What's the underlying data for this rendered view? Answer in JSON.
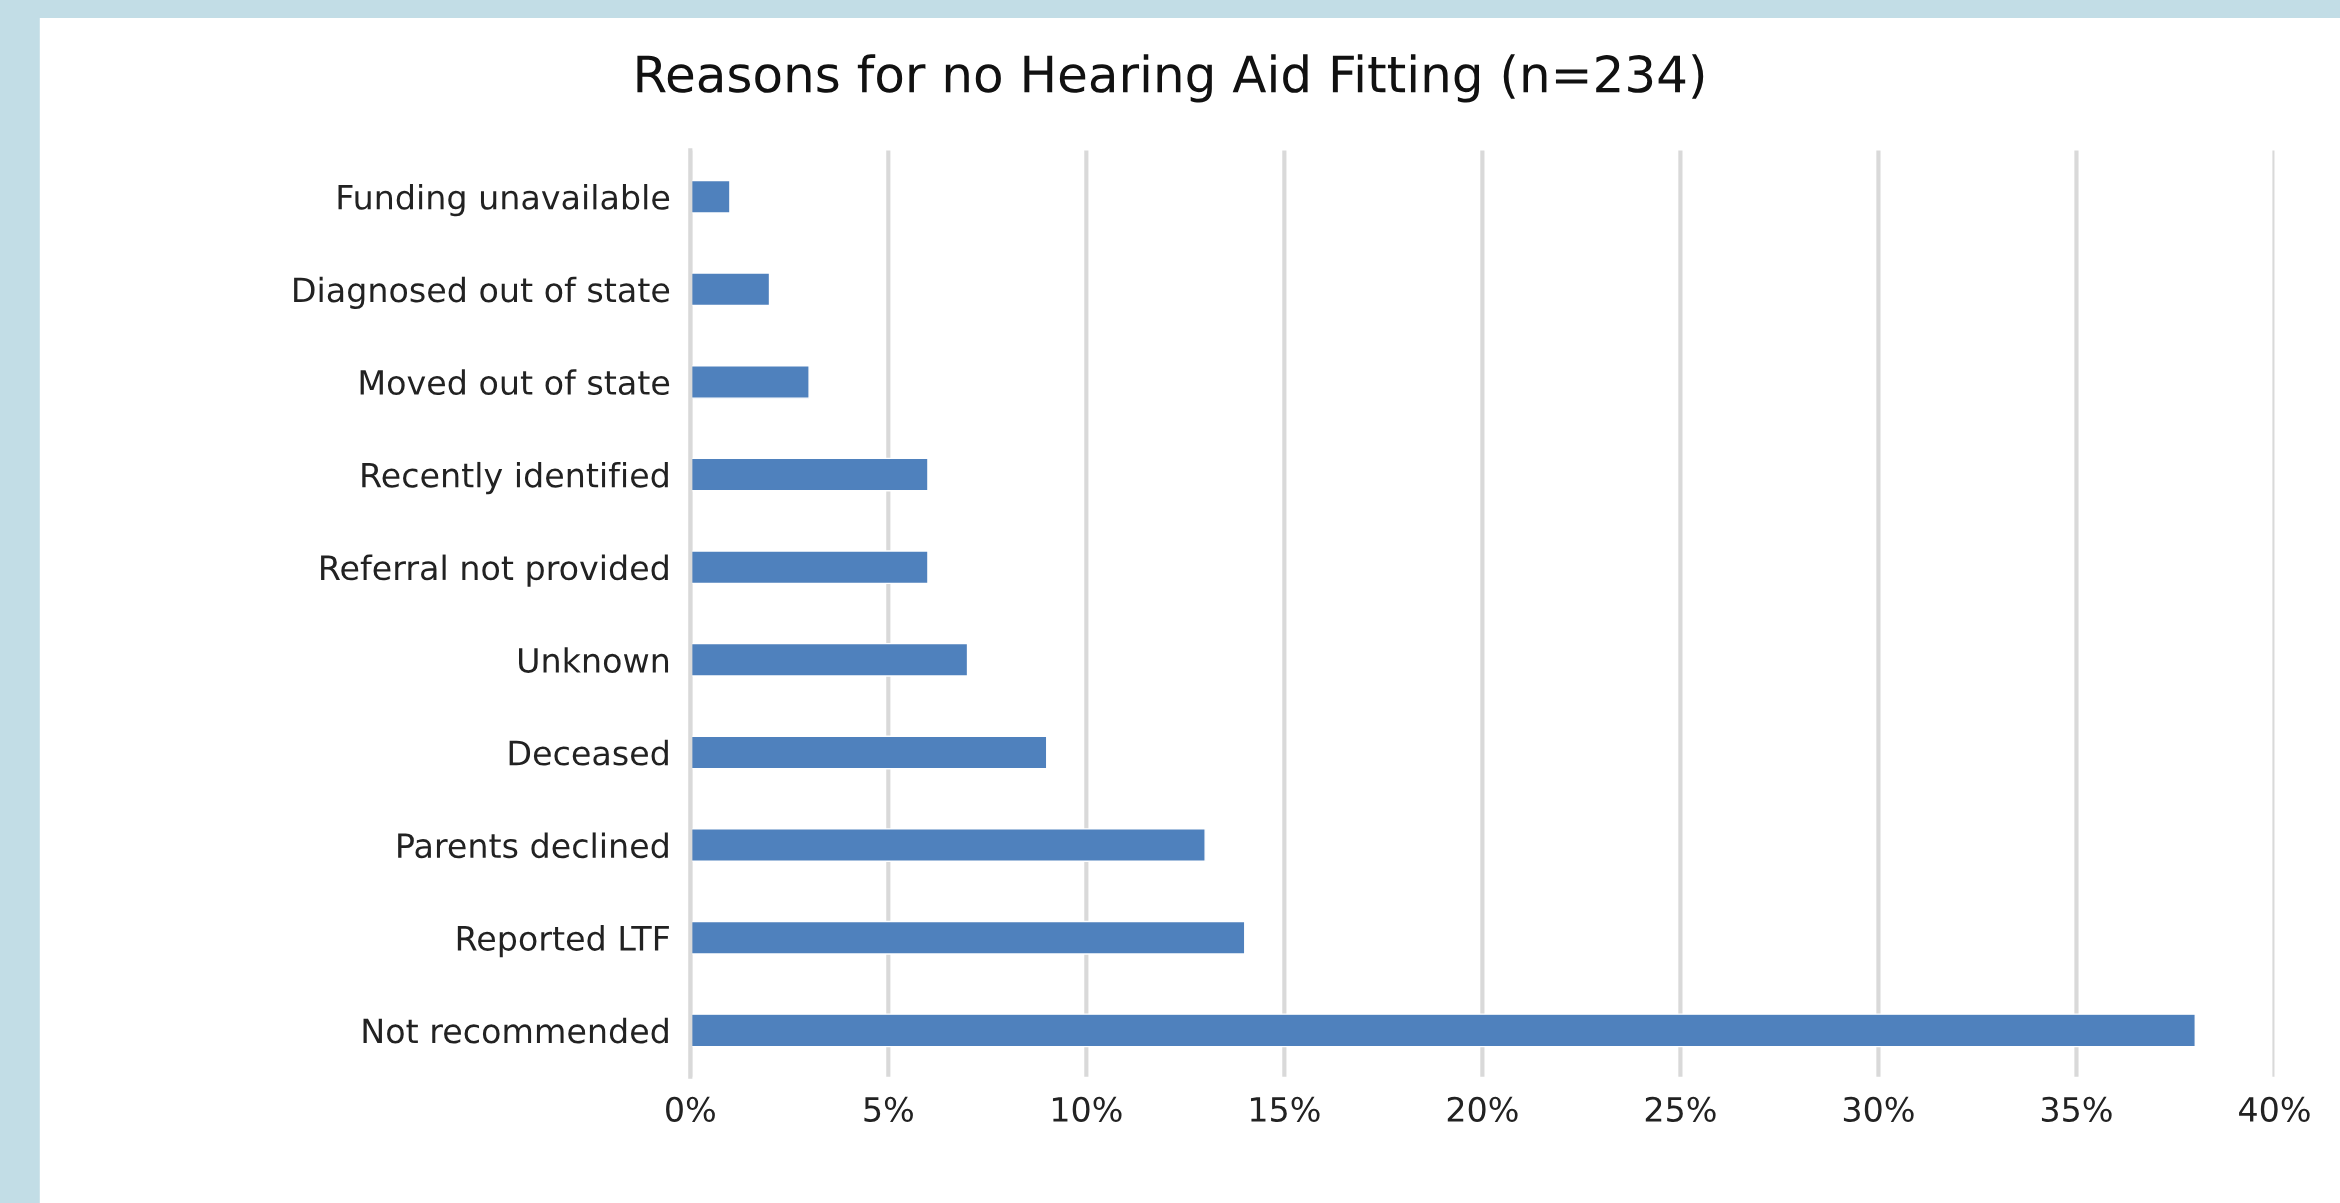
{
  "chart_data": {
    "type": "bar",
    "orientation": "horizontal",
    "title": "Reasons for no Hearing Aid Fitting (n=234)",
    "categories": [
      "Funding unavailable",
      "Diagnosed out of state",
      "Moved out of state",
      "Recently identified",
      "Referral not provided",
      "Unknown",
      "Deceased",
      "Parents declined",
      "Reported LTF",
      "Not recommended"
    ],
    "values": [
      1,
      2,
      3,
      6,
      6,
      7,
      9,
      13,
      14,
      38
    ],
    "color": "#4f81bd",
    "xlim": [
      0,
      40
    ],
    "xticks": [
      {
        "value": 0,
        "label": "0%"
      },
      {
        "value": 5,
        "label": "5%"
      },
      {
        "value": 10,
        "label": "10%"
      },
      {
        "value": 15,
        "label": "15%"
      },
      {
        "value": 20,
        "label": "20%"
      },
      {
        "value": 25,
        "label": "25%"
      },
      {
        "value": 30,
        "label": "30%"
      },
      {
        "value": 35,
        "label": "35%"
      },
      {
        "value": 40,
        "label": "40%"
      }
    ],
    "grid": "x",
    "legend": false
  }
}
